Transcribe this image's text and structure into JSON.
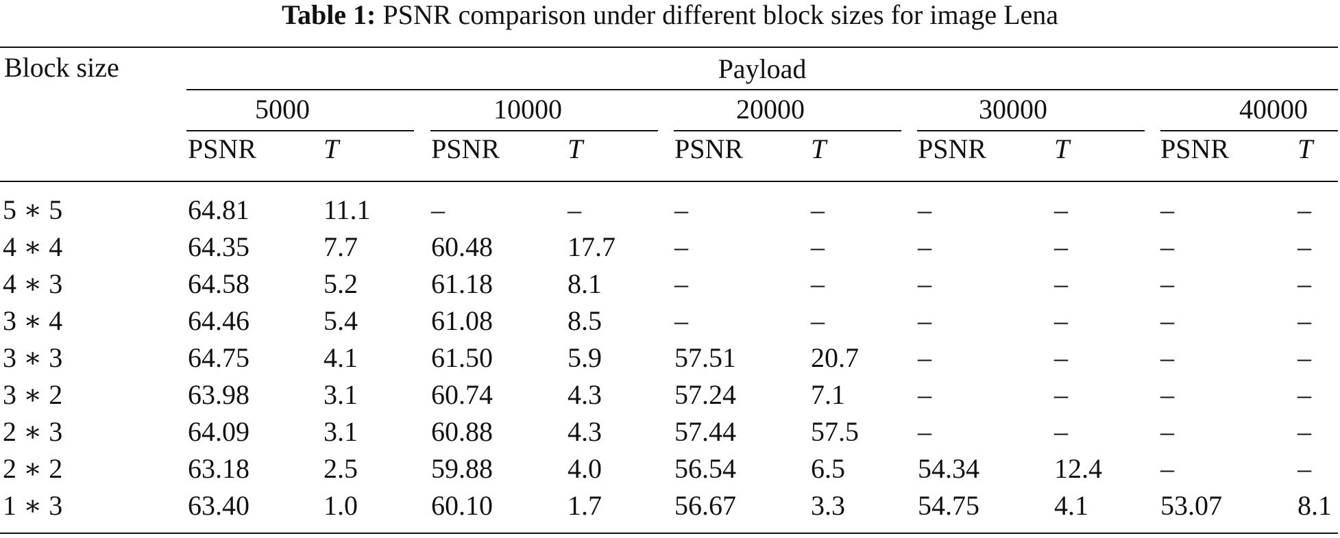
{
  "caption": {
    "label": "Table 1:",
    "text": " PSNR comparison under different block sizes for image Lena"
  },
  "table": {
    "row_header": "Block size",
    "group_header": "Payload",
    "payloads": [
      "5000",
      "10000",
      "20000",
      "30000",
      "40000"
    ],
    "sub_headers": {
      "psnr": "PSNR",
      "t": "T"
    },
    "rows": [
      {
        "block": "5 ∗ 5",
        "cells": [
          "64.81",
          "11.1",
          "–",
          "–",
          "–",
          "–",
          "–",
          "–",
          "–",
          "–"
        ]
      },
      {
        "block": "4 ∗ 4",
        "cells": [
          "64.35",
          "7.7",
          "60.48",
          "17.7",
          "–",
          "–",
          "–",
          "–",
          "–",
          "–"
        ]
      },
      {
        "block": "4 ∗ 3",
        "cells": [
          "64.58",
          "5.2",
          "61.18",
          "8.1",
          "–",
          "–",
          "–",
          "–",
          "–",
          "–"
        ]
      },
      {
        "block": "3 ∗ 4",
        "cells": [
          "64.46",
          "5.4",
          "61.08",
          "8.5",
          "–",
          "–",
          "–",
          "–",
          "–",
          "–"
        ]
      },
      {
        "block": "3 ∗ 3",
        "cells": [
          "64.75",
          "4.1",
          "61.50",
          "5.9",
          "57.51",
          "20.7",
          "–",
          "–",
          "–",
          "–"
        ]
      },
      {
        "block": "3 ∗ 2",
        "cells": [
          "63.98",
          "3.1",
          "60.74",
          "4.3",
          "57.24",
          "7.1",
          "–",
          "–",
          "–",
          "–"
        ]
      },
      {
        "block": "2 ∗ 3",
        "cells": [
          "64.09",
          "3.1",
          "60.88",
          "4.3",
          "57.44",
          "57.5",
          "–",
          "–",
          "–",
          "–"
        ]
      },
      {
        "block": "2 ∗ 2",
        "cells": [
          "63.18",
          "2.5",
          "59.88",
          "4.0",
          "56.54",
          "6.5",
          "54.34",
          "12.4",
          "–",
          "–"
        ]
      },
      {
        "block": "1 ∗ 3",
        "cells": [
          "63.40",
          "1.0",
          "60.10",
          "1.7",
          "56.67",
          "3.3",
          "54.75",
          "4.1",
          "53.07",
          "8.1"
        ]
      }
    ]
  }
}
